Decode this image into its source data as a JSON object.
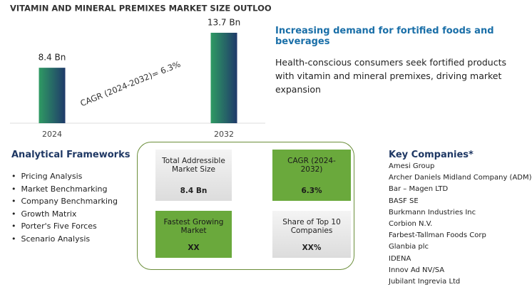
{
  "chart_data": {
    "type": "bar",
    "title": "VITAMIN AND MINERAL PREMIXES MARKET SIZE OUTLOOK",
    "categories": [
      "2024",
      "2032"
    ],
    "values": [
      8.4,
      13.7
    ],
    "value_labels": [
      "8.4 Bn",
      "13.7 Bn"
    ],
    "annotation": "CAGR (2024-2032)=  6.3%"
  },
  "headline": {
    "title": "Increasing demand for fortified foods and beverages",
    "text": "Health-conscious consumers seek fortified products with vitamin and mineral premixes, driving market expansion"
  },
  "frameworks": {
    "title": "Analytical Frameworks",
    "items": [
      "Pricing Analysis",
      "Market Benchmarking",
      "Company Benchmarking",
      "Growth Matrix",
      "Porter's Five Forces",
      "Scenario Analysis"
    ]
  },
  "boxes": [
    {
      "label": "Total Addressible Market Size",
      "value": "8.4 Bn"
    },
    {
      "label": "CAGR (2024-2032)",
      "value": "6.3%"
    },
    {
      "label": "Fastest Growing Market",
      "value": "XX"
    },
    {
      "label": "Share of Top 10 Companies",
      "value": "XX%"
    }
  ],
  "companies": {
    "title": "Key Companies*",
    "items": [
      "Amesi Group",
      "Archer Daniels Midland Company (ADM)",
      "Bar – Magen LTD",
      "BASF SE",
      "Burkmann Industries Inc",
      "Corbion N.V.",
      "Farbest-Tallman Foods Corp",
      "Glanbia plc",
      "IDENA",
      "Innov Ad NV/SA",
      "Jubilant Ingrevia Ltd"
    ]
  }
}
